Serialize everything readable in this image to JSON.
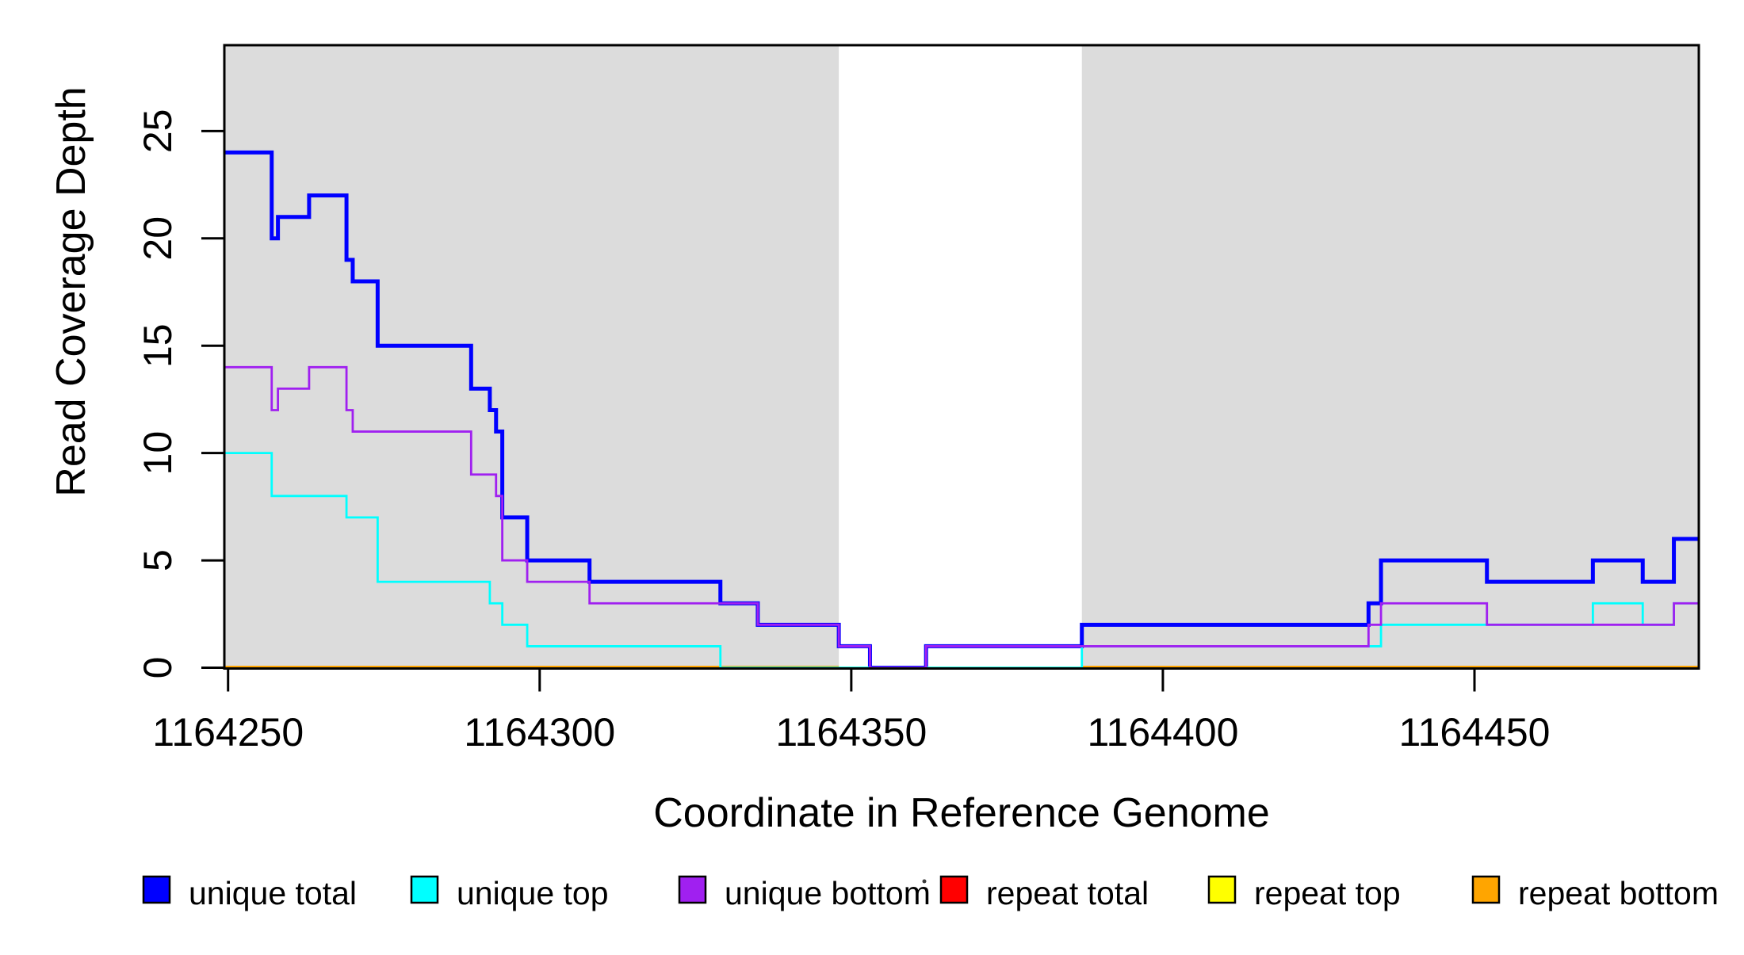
{
  "chart_data": {
    "type": "step-line",
    "title": "",
    "xlabel": "Coordinate in Reference Genome",
    "ylabel": "Read Coverage Depth",
    "x_ticks": [
      1164250,
      1164300,
      1164350,
      1164400,
      1164450
    ],
    "y_ticks": [
      0,
      5,
      10,
      15,
      20,
      25
    ],
    "x_range": [
      1164249.4,
      1164486
    ],
    "y_range": [
      0,
      29
    ],
    "grid": false,
    "panel_shading": {
      "color": "#DCDCDC",
      "bands_x": [
        [
          1164249.4,
          1164348
        ],
        [
          1164387,
          1164486
        ]
      ],
      "white_gap_x": [
        1164348,
        1164387
      ]
    },
    "series": [
      {
        "name": "repeat total",
        "color": "#FF0000",
        "line_width": 2.8,
        "parts": [
          {
            "steps": [
              [
                1164249.4,
                0
              ]
            ],
            "end": 1164486
          }
        ]
      },
      {
        "name": "repeat top",
        "color": "#FFFF00",
        "line_width": 2.8,
        "parts": [
          {
            "steps": [
              [
                1164249.4,
                0
              ]
            ],
            "end": 1164486
          }
        ]
      },
      {
        "name": "repeat bottom",
        "color": "#FFA500",
        "line_width": 5,
        "parts": [
          {
            "steps": [
              [
                1164249.4,
                0
              ]
            ],
            "end": 1164348
          },
          {
            "steps": [
              [
                1164387,
                0
              ]
            ],
            "end": 1164486
          }
        ]
      },
      {
        "name": "unique total",
        "color": "#0000FF",
        "line_width": 5,
        "parts": [
          {
            "steps": [
              [
                1164249.4,
                24
              ],
              [
                1164257,
                20
              ],
              [
                1164258,
                21
              ],
              [
                1164263,
                22
              ],
              [
                1164269,
                19
              ],
              [
                1164270,
                18
              ],
              [
                1164274,
                15
              ],
              [
                1164289,
                13
              ],
              [
                1164292,
                12
              ],
              [
                1164293,
                11
              ],
              [
                1164294,
                7
              ],
              [
                1164298,
                5
              ],
              [
                1164308,
                4
              ],
              [
                1164329,
                3
              ],
              [
                1164335,
                2
              ],
              [
                1164348,
                1
              ],
              [
                1164353,
                0
              ],
              [
                1164362,
                1
              ],
              [
                1164387,
                2
              ],
              [
                1164433,
                3
              ],
              [
                1164435,
                5
              ],
              [
                1164452,
                4
              ],
              [
                1164469,
                5
              ],
              [
                1164477,
                4
              ],
              [
                1164482,
                6
              ]
            ],
            "end": 1164486
          }
        ]
      },
      {
        "name": "unique top",
        "color": "#00FFFF",
        "line_width": 2.8,
        "parts": [
          {
            "steps": [
              [
                1164249.4,
                10
              ],
              [
                1164257,
                8
              ],
              [
                1164269,
                7
              ],
              [
                1164274,
                4
              ],
              [
                1164292,
                3
              ],
              [
                1164294,
                2
              ],
              [
                1164298,
                1
              ],
              [
                1164329,
                0
              ],
              [
                1164387,
                1
              ],
              [
                1164435,
                2
              ],
              [
                1164469,
                3
              ],
              [
                1164477,
                2
              ],
              [
                1164482,
                3
              ]
            ],
            "end": 1164486
          }
        ]
      },
      {
        "name": "unique bottom",
        "color": "#A020F0",
        "line_width": 2.8,
        "parts": [
          {
            "steps": [
              [
                1164249.4,
                14
              ],
              [
                1164257,
                12
              ],
              [
                1164258,
                13
              ],
              [
                1164263,
                14
              ],
              [
                1164269,
                12
              ],
              [
                1164270,
                11
              ],
              [
                1164289,
                9
              ],
              [
                1164293,
                8
              ],
              [
                1164294,
                5
              ],
              [
                1164298,
                4
              ],
              [
                1164308,
                3
              ],
              [
                1164335,
                2
              ],
              [
                1164348,
                1
              ],
              [
                1164353,
                0
              ],
              [
                1164362,
                1
              ],
              [
                1164433,
                2
              ],
              [
                1164435,
                3
              ],
              [
                1164452,
                2
              ],
              [
                1164482,
                3
              ]
            ],
            "end": 1164486
          }
        ]
      }
    ],
    "legend": {
      "position": "bottom",
      "items": [
        {
          "label": "unique total",
          "color": "#0000FF"
        },
        {
          "label": "unique top",
          "color": "#00FFFF"
        },
        {
          "label": "unique bottom",
          "color": "#A020F0"
        },
        {
          "label": "repeat total",
          "color": "#FF0000"
        },
        {
          "label": "repeat top",
          "color": "#FFFF00"
        },
        {
          "label": "repeat bottom",
          "color": "#FFA500"
        }
      ]
    }
  }
}
